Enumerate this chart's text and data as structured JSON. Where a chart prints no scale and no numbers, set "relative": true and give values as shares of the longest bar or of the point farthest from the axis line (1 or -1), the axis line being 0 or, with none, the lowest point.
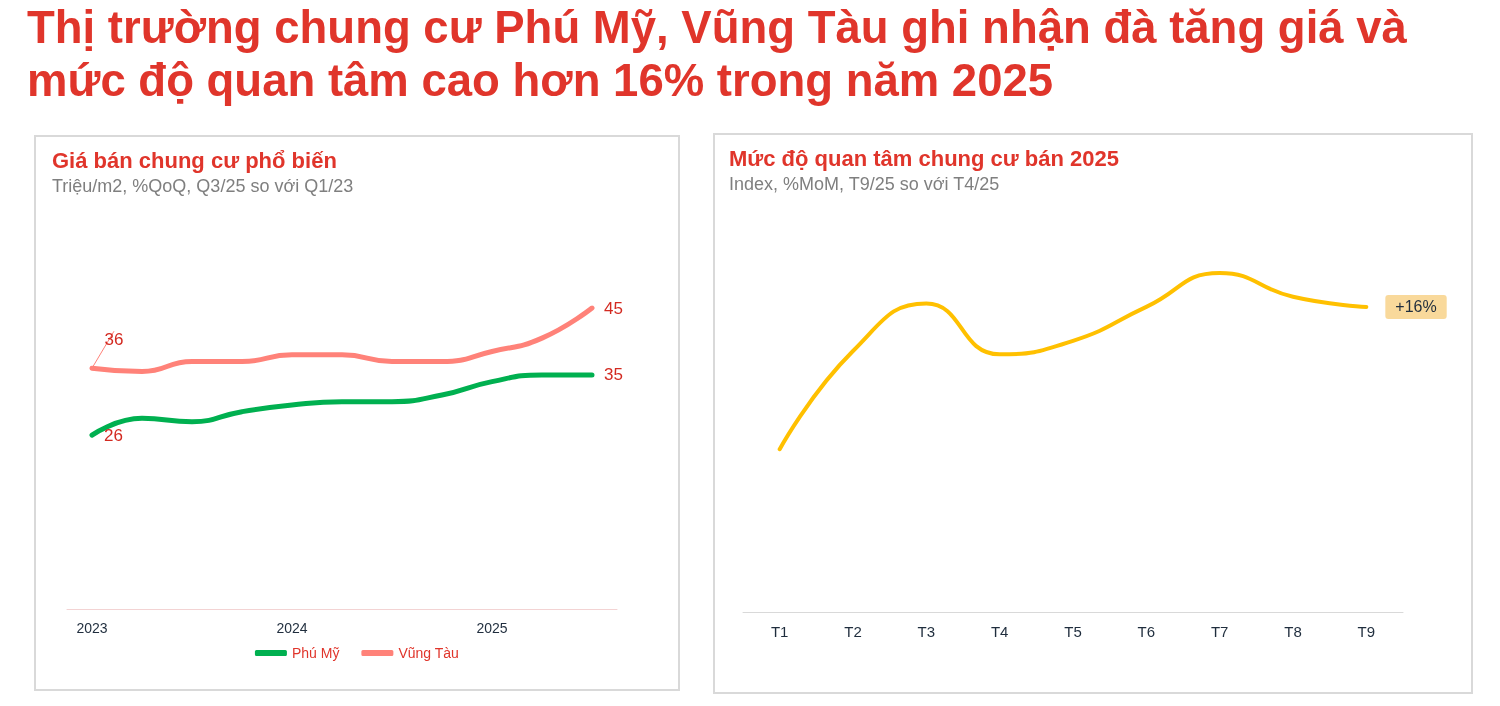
{
  "chart_data": [
    {
      "type": "other",
      "title": "Thị trường chung cư Phú Mỹ, Vũng Tàu ghi nhận đà tăng giá và mức độ quan tâm cao hơn 16% trong năm 2025"
    },
    {
      "type": "line",
      "title": "Giá bán chung cư phổ biến",
      "subtitle": "Triệu/m2, %QoQ, Q3/25 so với Q1/23",
      "categories": [
        "2023",
        null,
        null,
        null,
        "2024",
        null,
        null,
        null,
        "2025",
        null,
        null
      ],
      "series": [
        {
          "name": "Phú Mỹ",
          "color": "#00b050",
          "values": [
            26,
            28.5,
            28,
            29.5,
            30.5,
            31,
            31,
            32,
            34,
            35,
            35
          ],
          "value_labels": [
            "26",
            null,
            null,
            null,
            null,
            null,
            null,
            null,
            null,
            null,
            "35"
          ]
        },
        {
          "name": "Vũng Tàu",
          "color": "#ff8279",
          "values": [
            36,
            35.5,
            37,
            37,
            38,
            38,
            37,
            37,
            38.5,
            40.5,
            45
          ],
          "value_labels": [
            "36",
            null,
            null,
            null,
            null,
            null,
            null,
            null,
            null,
            null,
            "45"
          ]
        }
      ],
      "tick_labels": "x",
      "grid": false,
      "legend": "bottom"
    },
    {
      "type": "line",
      "title": "Mức độ quan tâm chung cư bán 2025",
      "subtitle": "Index, %MoM, T9/25 so với T4/25",
      "categories": [
        "T1",
        "T2",
        "T3",
        "T4",
        "T5",
        "T6",
        "T7",
        "T8",
        "T9"
      ],
      "relative": true,
      "series": [
        {
          "color": "#ffc000",
          "values": [
            0.48,
            0.77,
            0.91,
            0.76,
            0.8,
            0.9,
            1,
            0.93,
            0.9
          ]
        }
      ],
      "annotations": [
        {
          "text": "+16%",
          "x": "T9",
          "y": 0.9
        }
      ],
      "grid": false,
      "legend": false
    }
  ]
}
